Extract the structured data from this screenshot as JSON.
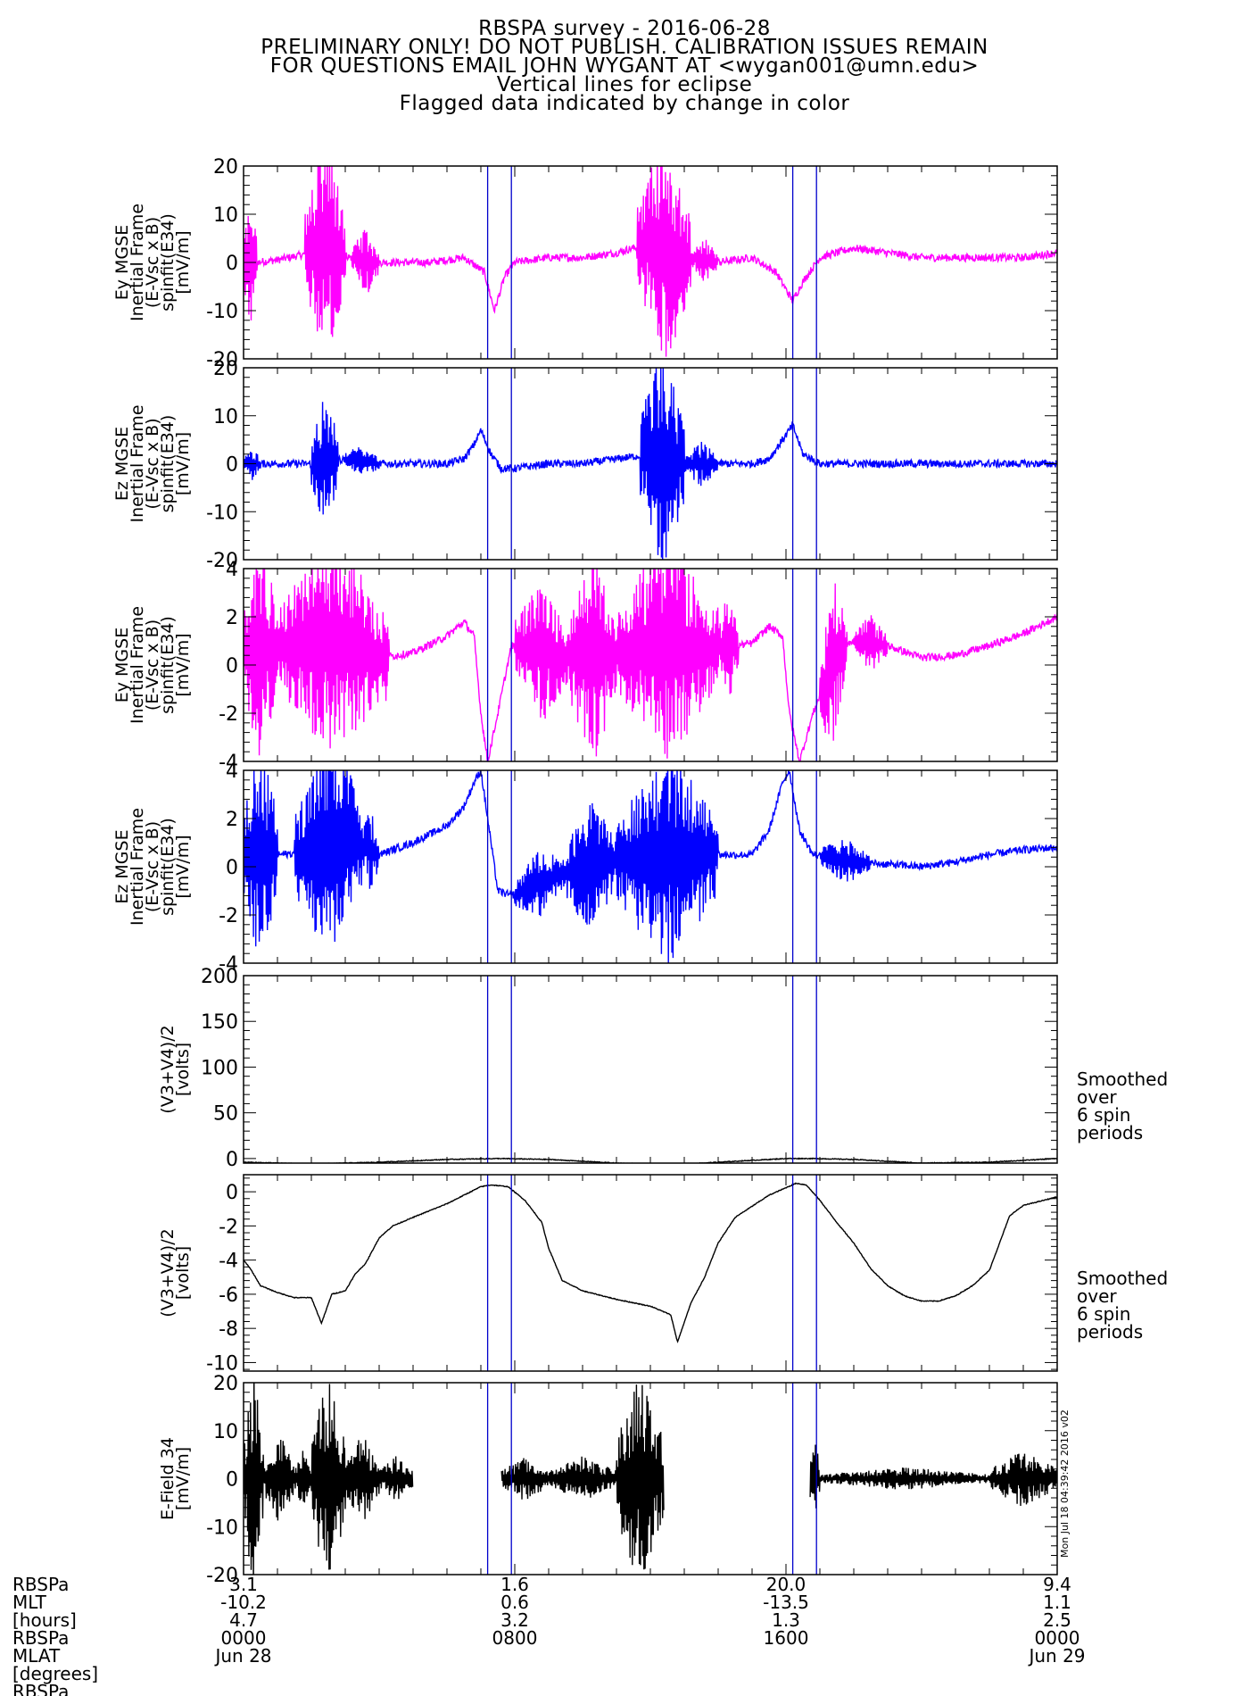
{
  "header": {
    "title": "RBSPA survey - 2016-06-28",
    "line2": "PRELIMINARY ONLY! DO NOT PUBLISH. CALIBRATION ISSUES REMAIN",
    "line3": "FOR QUESTIONS EMAIL JOHN WYGANT AT <wygan001@umn.edu>",
    "line4": "Vertical lines for eclipse",
    "line5": "Flagged data indicated by change in color"
  },
  "colors": {
    "magenta": "#ff00ff",
    "blue": "#0000ff",
    "black": "#000000",
    "eclipse_line": "#0000cc"
  },
  "chart_data": {
    "type": "line",
    "x_unit": "hours UT from 2016-06-28 00:00",
    "xlim": [
      0,
      24
    ],
    "eclipse_windows": [
      [
        7.2,
        7.9
      ],
      [
        16.2,
        16.9
      ]
    ],
    "x_tick_labels": {
      "RBSPa": [
        "3.1",
        "1.6",
        "20.0",
        "9.4"
      ],
      "MLT": [
        "-10.2",
        "0.6",
        "-13.5",
        "1.1"
      ],
      "hours": [
        "4.7",
        "3.2",
        "1.3",
        "2.5"
      ],
      "UT": [
        "0000",
        "0800",
        "1600",
        "0000"
      ],
      "date": [
        "Jun 28",
        "",
        "",
        "Jun 29"
      ]
    },
    "ephemeris_labels": [
      "RBSPa",
      "MLT",
      "[hours]",
      "RBSPa",
      "MLAT",
      "[degrees]",
      "RBSPa"
    ],
    "timestamp": "Mon Jul 18 04:39:42 2016 v02",
    "panels": [
      {
        "ylabel": [
          "Ey MGSE",
          "Inertial Frame",
          "(E-Vsc x B)",
          "spinfit(E34)",
          "[mV/m]"
        ],
        "ylim": [
          -20,
          20
        ],
        "yticks": [
          "20",
          "10",
          "0",
          "-10",
          "-20"
        ],
        "color": "magenta",
        "series": [
          {
            "x": [
              0,
              0.3,
              1.0,
              2.0,
              2.5,
              3.5,
              4.5,
              5.5,
              6.5,
              7.1,
              7.4,
              7.7,
              8.0,
              9.0,
              10.0,
              11.0,
              12.0,
              12.5,
              13.0,
              14.0,
              15.0,
              15.7,
              16.2,
              16.5,
              17.0,
              18.0,
              19.0,
              20.0,
              21.0,
              22.0,
              23.0,
              24.0
            ],
            "y": [
              0,
              0,
              0.5,
              2,
              3,
              0,
              0,
              0,
              1,
              -2,
              -10,
              -3,
              0,
              1,
              1,
              2,
              4,
              2,
              1,
              0,
              1,
              -2,
              -8,
              -4,
              1,
              3,
              2,
              1,
              1,
              1,
              1,
              2
            ]
          }
        ],
        "activity_bursts": [
          [
            0.0,
            0.4,
            12
          ],
          [
            1.8,
            3.0,
            20
          ],
          [
            3.2,
            4.0,
            6
          ],
          [
            11.6,
            13.2,
            20
          ],
          [
            13.2,
            14.0,
            4
          ]
        ]
      },
      {
        "ylabel": [
          "Ez MGSE",
          "Inertial Frame",
          "(E-Vsc x B)",
          "spinfit(E34)",
          "[mV/m]"
        ],
        "ylim": [
          -20,
          20
        ],
        "yticks": [
          "20",
          "10",
          "0",
          "-10",
          "-20"
        ],
        "color": "blue",
        "series": [
          {
            "x": [
              0,
              1,
              2,
              3,
              4,
              5,
              6,
              6.5,
              6.8,
              7.0,
              7.3,
              7.6,
              8,
              9,
              10,
              11,
              12,
              12.5,
              13,
              14,
              15,
              15.5,
              15.9,
              16.2,
              16.5,
              17,
              18,
              19,
              20,
              21,
              22,
              23,
              24
            ],
            "y": [
              0,
              0,
              0,
              1,
              0,
              0,
              0,
              1,
              4,
              7,
              2,
              -1,
              -1,
              0,
              0,
              1,
              2,
              1,
              0,
              0,
              0,
              1,
              5,
              8,
              2,
              0,
              0,
              0,
              0,
              0,
              0,
              0,
              0
            ]
          }
        ],
        "activity_bursts": [
          [
            0.0,
            0.5,
            3
          ],
          [
            2.0,
            2.8,
            12
          ],
          [
            3.0,
            4.0,
            3
          ],
          [
            11.7,
            13.0,
            20
          ],
          [
            13.0,
            14.0,
            4
          ]
        ]
      },
      {
        "ylabel": [
          "Ey MGSE",
          "Inertial Frame",
          "(E-Vsc x B)",
          "spinfit(E34)",
          "[mV/m]"
        ],
        "ylim": [
          -4,
          4
        ],
        "yticks": [
          "4",
          "2",
          "0",
          "-2",
          "-4"
        ],
        "color": "magenta",
        "series": [
          {
            "x": [
              0,
              1,
              2,
              3,
              4,
              5,
              6,
              6.5,
              6.8,
              7.0,
              7.2,
              7.5,
              7.9,
              8.5,
              9,
              10,
              11,
              12,
              13,
              14,
              15,
              15.5,
              15.9,
              16.1,
              16.4,
              16.8,
              17.5,
              18,
              19,
              20,
              21,
              22,
              23,
              24
            ],
            "y": [
              0.5,
              0.7,
              0.8,
              1,
              0.3,
              0.5,
              1.2,
              1.8,
              1.2,
              -2,
              -4,
              -2,
              0.8,
              0.7,
              0.5,
              0.3,
              0.5,
              0.8,
              0.6,
              0.7,
              0.9,
              1.6,
              1.2,
              -2,
              -4,
              -2,
              0.5,
              1,
              0.8,
              0.3,
              0.4,
              0.8,
              1.3,
              2
            ]
          }
        ],
        "activity_bursts": [
          [
            0.0,
            1.0,
            4
          ],
          [
            1.0,
            4.3,
            4
          ],
          [
            8.0,
            9.6,
            2.5
          ],
          [
            9.6,
            11.0,
            4
          ],
          [
            11.0,
            14.0,
            4
          ],
          [
            14.0,
            14.6,
            2
          ],
          [
            17.0,
            17.8,
            3
          ],
          [
            18.0,
            19.0,
            1
          ]
        ]
      },
      {
        "ylabel": [
          "Ez MGSE",
          "Inertial Frame",
          "(E-Vsc x B)",
          "spinfit(E34)",
          "[mV/m]"
        ],
        "ylim": [
          -4,
          4
        ],
        "yticks": [
          "4",
          "2",
          "0",
          "-2",
          "-4"
        ],
        "color": "blue",
        "series": [
          {
            "x": [
              0,
              1,
              2,
              3,
              4,
              5,
              6,
              6.5,
              6.8,
              7.0,
              7.2,
              7.5,
              7.9,
              8.5,
              9,
              10,
              11,
              12,
              13,
              14,
              15,
              15.5,
              15.9,
              16.1,
              16.4,
              16.8,
              17.5,
              18,
              19,
              20,
              21,
              22,
              23,
              24
            ],
            "y": [
              0.5,
              0.5,
              0.6,
              1.2,
              0.5,
              1,
              1.7,
              2.5,
              3.5,
              4,
              2,
              -1,
              -1.2,
              -0.8,
              -0.5,
              0,
              0.3,
              0.4,
              0.5,
              0.5,
              0.5,
              1.5,
              3.5,
              4,
              1.5,
              0.5,
              0.3,
              0.2,
              0.1,
              0,
              0.2,
              0.5,
              0.7,
              0.8
            ]
          }
        ],
        "activity_bursts": [
          [
            0.0,
            1.0,
            4
          ],
          [
            1.5,
            3.5,
            4
          ],
          [
            3.5,
            4.0,
            1.5
          ],
          [
            8.0,
            9.5,
            1.2
          ],
          [
            9.5,
            11.0,
            2.5
          ],
          [
            11.0,
            14.0,
            4
          ],
          [
            17.0,
            18.5,
            0.8
          ]
        ]
      },
      {
        "ylabel": [
          "(V3+V4)/2",
          "[volts]"
        ],
        "ylim": [
          -5,
          200
        ],
        "yticks": [
          "200",
          "150",
          "100",
          "50",
          "0"
        ],
        "ytick_values": [
          200,
          150,
          100,
          50,
          0
        ],
        "color": "black",
        "note": [
          "Smoothed",
          "over",
          "6 spin",
          "periods"
        ],
        "series": [
          {
            "x": [
              0,
              2,
              4,
              6,
              7.5,
              9,
              11,
              12.5,
              14,
              16,
              16.8,
              18,
              20,
              22,
              24
            ],
            "y": [
              -4,
              -6,
              -4,
              -1,
              0,
              -1,
              -5,
              -7,
              -4,
              0,
              0,
              -1,
              -5,
              -4,
              0
            ]
          }
        ]
      },
      {
        "ylabel": [
          "(V3+V4)/2",
          "[volts]"
        ],
        "ylim": [
          -10.5,
          1
        ],
        "yticks": [
          "0",
          "-2",
          "-4",
          "-6",
          "-8",
          "-10"
        ],
        "ytick_values": [
          0,
          -2,
          -4,
          -6,
          -8,
          -10
        ],
        "color": "black",
        "note": [
          "Smoothed",
          "over",
          "6 spin",
          "periods"
        ],
        "series": [
          {
            "x": [
              0,
              0.2,
              0.5,
              1.0,
              1.5,
              2.0,
              2.3,
              2.6,
              3.0,
              3.3,
              3.6,
              4.0,
              4.4,
              5.0,
              6.0,
              7.0,
              7.3,
              7.8,
              8.3,
              8.8,
              9.0,
              9.4,
              10.0,
              11.0,
              12.0,
              12.6,
              12.8,
              13.2,
              13.6,
              14.0,
              14.5,
              15.5,
              16.3,
              16.6,
              17.0,
              17.5,
              18.0,
              18.5,
              19.0,
              19.5,
              20.0,
              20.5,
              21.0,
              21.5,
              22.0,
              22.3,
              22.6,
              23.0,
              24.0
            ],
            "y": [
              -4.0,
              -4.5,
              -5.5,
              -5.9,
              -6.2,
              -6.2,
              -7.7,
              -6.0,
              -5.8,
              -4.8,
              -4.2,
              -2.7,
              -2.0,
              -1.5,
              -0.7,
              0.3,
              0.4,
              0.3,
              -0.5,
              -1.8,
              -3.3,
              -5.2,
              -5.8,
              -6.3,
              -6.7,
              -7.2,
              -8.8,
              -6.5,
              -5.0,
              -3.0,
              -1.5,
              -0.2,
              0.5,
              0.4,
              -0.5,
              -1.8,
              -3.0,
              -4.5,
              -5.5,
              -6.1,
              -6.4,
              -6.4,
              -6.1,
              -5.5,
              -4.6,
              -3.0,
              -1.4,
              -0.8,
              -0.3
            ]
          }
        ]
      },
      {
        "ylabel": [
          "E-Field 34",
          "[mV/m]"
        ],
        "ylim": [
          -20,
          20
        ],
        "yticks": [
          "20",
          "10",
          "0",
          "-10",
          "-20"
        ],
        "color": "black",
        "gaps": [
          [
            5.0,
            7.6
          ],
          [
            12.4,
            16.7
          ]
        ],
        "activity_bursts": [
          [
            0.0,
            0.6,
            20
          ],
          [
            0.6,
            1.5,
            8
          ],
          [
            1.5,
            2.0,
            5
          ],
          [
            2.0,
            3.0,
            20
          ],
          [
            3.0,
            4.0,
            8
          ],
          [
            4.0,
            5.0,
            4
          ],
          [
            7.6,
            9.0,
            4
          ],
          [
            9.0,
            11.0,
            4
          ],
          [
            11.0,
            12.4,
            20
          ],
          [
            16.7,
            17.0,
            8
          ],
          [
            17.0,
            22.0,
            2
          ],
          [
            22.0,
            24.0,
            5
          ]
        ]
      }
    ]
  }
}
